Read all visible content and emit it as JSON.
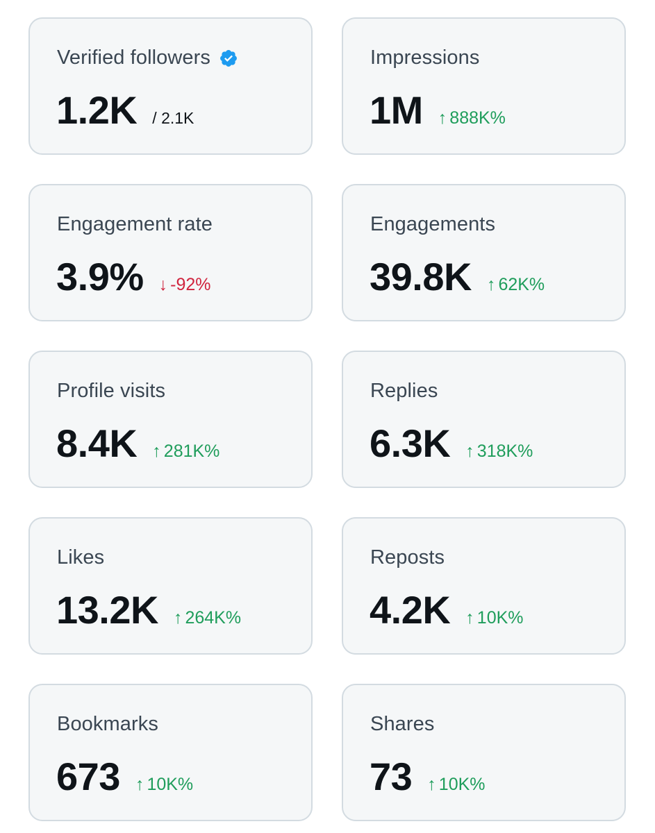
{
  "colors": {
    "card_background": "#f5f7f8",
    "card_border": "#d3dbe1",
    "label": "#3a4652",
    "value": "#0f1419",
    "positive": "#1f9d5b",
    "negative": "#d0243e",
    "verified": "#1d9bf0"
  },
  "cards": [
    {
      "label": "Verified followers",
      "icon": "verified-badge-icon",
      "value": "1.2K",
      "sub": "/ 2.1K"
    },
    {
      "label": "Impressions",
      "value": "1M",
      "delta": {
        "direction": "up",
        "arrow": "↑",
        "text": "888K%"
      }
    },
    {
      "label": "Engagement rate",
      "value": "3.9%",
      "delta": {
        "direction": "down",
        "arrow": "↓",
        "text": "-92%"
      }
    },
    {
      "label": "Engagements",
      "value": "39.8K",
      "delta": {
        "direction": "up",
        "arrow": "↑",
        "text": "62K%"
      }
    },
    {
      "label": "Profile visits",
      "value": "8.4K",
      "delta": {
        "direction": "up",
        "arrow": "↑",
        "text": "281K%"
      }
    },
    {
      "label": "Replies",
      "value": "6.3K",
      "delta": {
        "direction": "up",
        "arrow": "↑",
        "text": "318K%"
      }
    },
    {
      "label": "Likes",
      "value": "13.2K",
      "delta": {
        "direction": "up",
        "arrow": "↑",
        "text": "264K%"
      }
    },
    {
      "label": "Reposts",
      "value": "4.2K",
      "delta": {
        "direction": "up",
        "arrow": "↑",
        "text": "10K%"
      }
    },
    {
      "label": "Bookmarks",
      "value": "673",
      "delta": {
        "direction": "up",
        "arrow": "↑",
        "text": "10K%"
      }
    },
    {
      "label": "Shares",
      "value": "73",
      "delta": {
        "direction": "up",
        "arrow": "↑",
        "text": "10K%"
      }
    }
  ]
}
